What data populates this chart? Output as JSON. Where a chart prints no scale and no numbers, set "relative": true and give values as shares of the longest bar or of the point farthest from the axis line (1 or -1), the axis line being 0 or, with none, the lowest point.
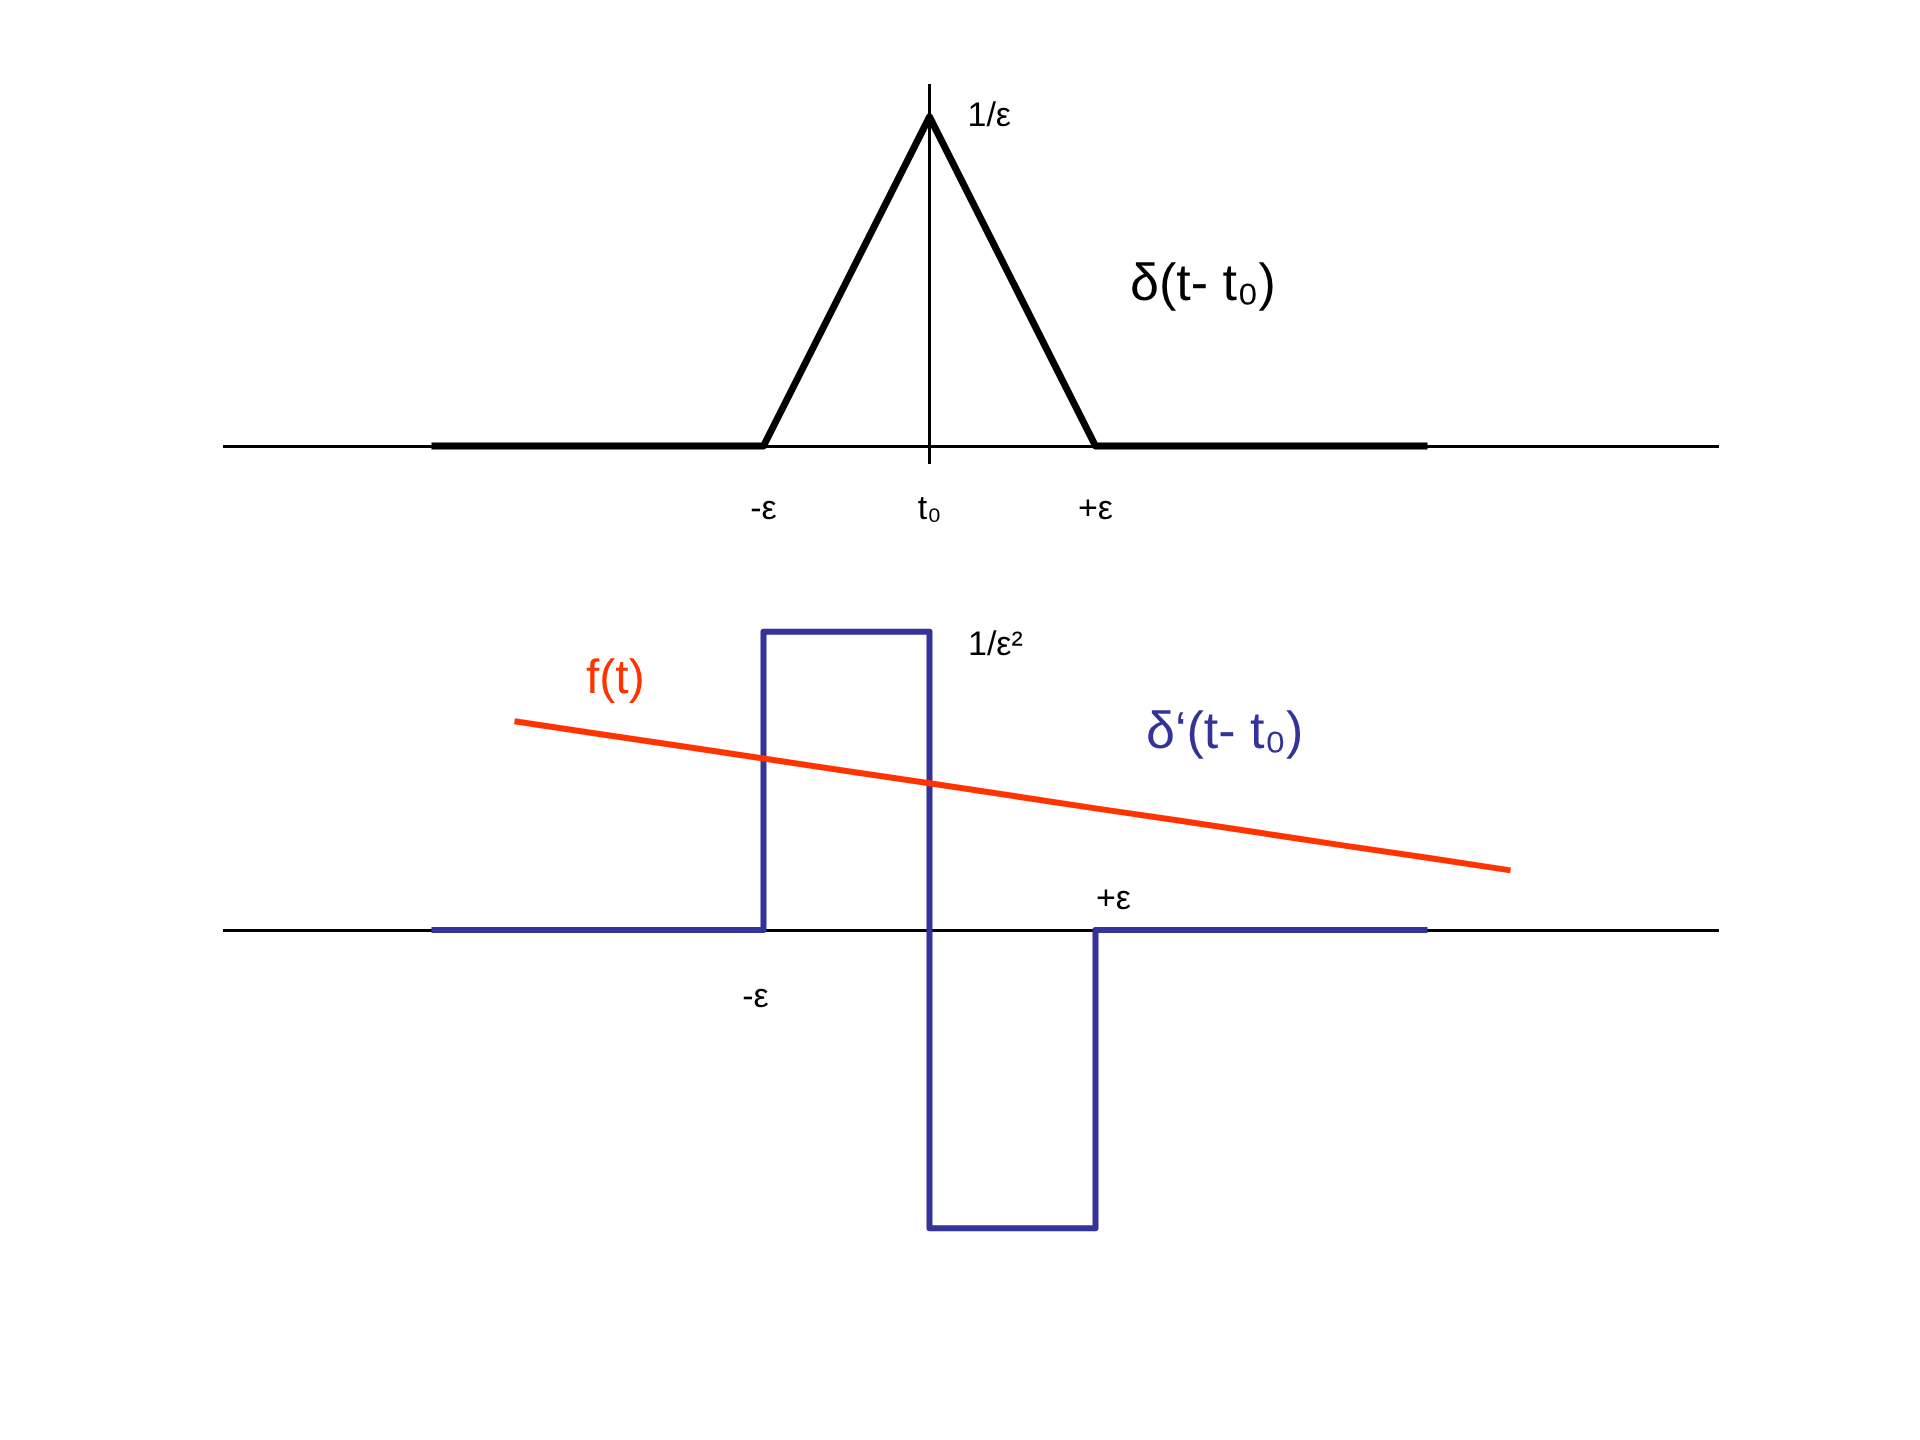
{
  "chart_data": [
    {
      "type": "line",
      "relative": true,
      "categories": [
        null,
        null,
        null,
        null,
        null,
        null,
        "-ε",
        null,
        "t₀",
        null,
        "+ε",
        null,
        null,
        null,
        null,
        null,
        null,
        null
      ],
      "marker": "none",
      "series": [
        {
          "name": "δ(t- t₀)",
          "color": "#000000",
          "values": [
            null,
            null,
            0,
            0,
            0,
            0,
            0,
            0.5,
            1,
            0.5,
            0,
            0,
            0,
            0,
            0,
            null,
            null,
            null
          ]
        }
      ],
      "ref_lines": [
        {
          "axis": "x",
          "value": "t₀",
          "color": "#000000"
        }
      ],
      "annotations": [
        {
          "text": "1/ε",
          "x": "t₀",
          "y": 1
        }
      ]
    },
    {
      "type": "line",
      "relative": true,
      "categories": [
        null,
        null,
        null,
        null,
        null,
        null,
        "-ε",
        null,
        null,
        null,
        "+ε",
        null,
        null,
        null,
        null,
        null,
        null,
        null
      ],
      "marker": "none",
      "series": [
        {
          "name": "f(t)",
          "color": "#ff3300",
          "values": [
            null,
            null,
            null,
            0.7,
            0.658,
            0.617,
            0.575,
            0.533,
            0.492,
            0.45,
            0.408,
            0.367,
            0.325,
            0.283,
            0.242,
            0.2,
            null,
            null
          ]
        },
        {
          "name": "δ‘(t- t₀)",
          "color": "#333399",
          "type": "step",
          "values": [
            null,
            null,
            0,
            0,
            0,
            0,
            1,
            1,
            -1,
            -1,
            0,
            0,
            0,
            0,
            0,
            null,
            null,
            null
          ]
        }
      ],
      "annotations": [
        "1/ε²"
      ]
    }
  ]
}
